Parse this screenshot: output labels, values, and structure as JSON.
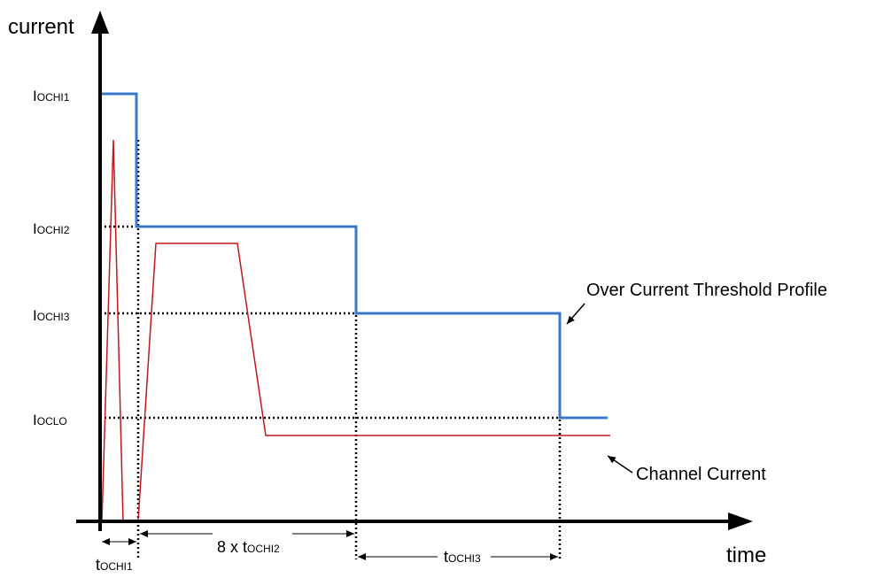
{
  "axes": {
    "y_title": "current",
    "x_title": "time"
  },
  "y_levels": [
    {
      "id": "ochi1",
      "base": "I",
      "sub": "OCHI1"
    },
    {
      "id": "ochi2",
      "base": "I",
      "sub": "OCHI2"
    },
    {
      "id": "ochi3",
      "base": "I",
      "sub": "OCHI3"
    },
    {
      "id": "oclo",
      "base": "I",
      "sub": "OCLO"
    }
  ],
  "intervals": {
    "t1": {
      "base": "t",
      "sub": "OCHI1"
    },
    "t2": {
      "prefix": "8 x ",
      "base": "t",
      "sub": "OCHI2"
    },
    "t3": {
      "base": "t",
      "sub": "OCHI3"
    }
  },
  "annotations": {
    "threshold": "Over Current Threshold Profile",
    "channel": "Channel Current"
  },
  "colors": {
    "threshold_line": "#3a78c9",
    "channel_line": "#c0181c",
    "axis": "#000000",
    "guide": "#000000"
  }
}
